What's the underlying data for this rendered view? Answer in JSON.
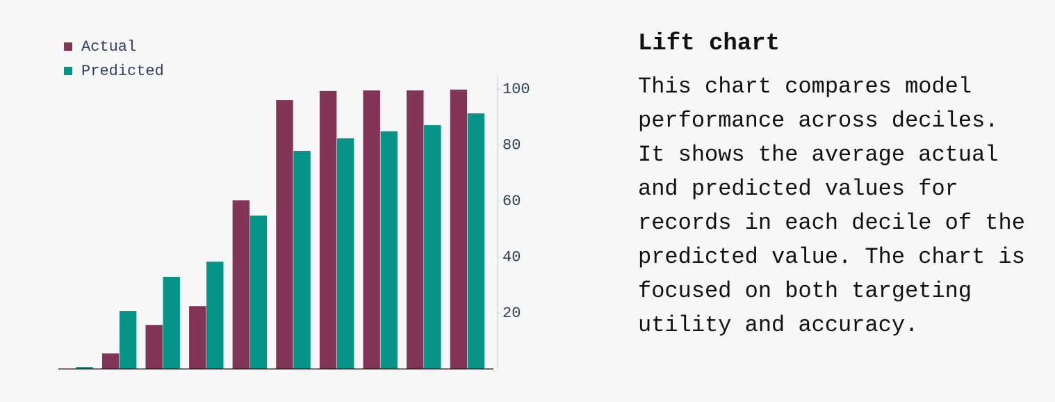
{
  "chart_data": {
    "type": "bar",
    "categories": [
      null,
      null,
      null,
      null,
      null,
      null,
      null,
      null,
      null,
      null
    ],
    "series": [
      {
        "name": "Actual",
        "color": "#833558",
        "values": [
          0,
          5.6,
          15.8,
          22.5,
          60.3,
          96.1,
          99.4,
          99.6,
          99.6,
          99.9
        ]
      },
      {
        "name": "Predicted",
        "color": "#079488",
        "values": [
          0.7,
          20.8,
          33,
          38.4,
          54.9,
          78,
          82.5,
          85,
          87.2,
          91.4
        ]
      }
    ],
    "ylim": [
      0,
      105
    ],
    "yticks": [
      20,
      40,
      60,
      80,
      100
    ],
    "y_axis_side": "right",
    "legend": "top-left",
    "grid": false
  },
  "panel": {
    "title": "Lift chart",
    "text": "This chart compares model performance across deciles. It shows the average actual and predicted values for records in each decile of the predicted value. The chart is focused on both targeting utility and accuracy."
  }
}
